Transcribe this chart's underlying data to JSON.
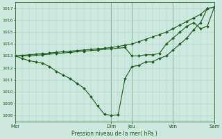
{
  "bg_color": "#cde8df",
  "grid_color": "#b0d4c8",
  "line_color": "#1a5e1a",
  "xlabel": "Pression niveau de la mer( hPa )",
  "ylim": [
    1007.5,
    1017.5
  ],
  "yticks": [
    1008,
    1009,
    1010,
    1011,
    1012,
    1013,
    1014,
    1015,
    1016,
    1017
  ],
  "day_labels": [
    "Mer",
    "Dim",
    "Jeu",
    "Ven",
    "Sam"
  ],
  "day_positions": [
    0,
    14,
    17,
    23,
    29
  ],
  "xlim": [
    0,
    29
  ],
  "series1_x": [
    0,
    1,
    2,
    3,
    4,
    5,
    6,
    7,
    8,
    9,
    10,
    11,
    12,
    13,
    14,
    15,
    16,
    17,
    18,
    19,
    20,
    21,
    22,
    23,
    24,
    25,
    26,
    27,
    28,
    29
  ],
  "series1_y": [
    1013.0,
    1013.05,
    1013.1,
    1013.15,
    1013.2,
    1013.25,
    1013.3,
    1013.35,
    1013.4,
    1013.45,
    1013.5,
    1013.55,
    1013.6,
    1013.65,
    1013.7,
    1013.8,
    1013.9,
    1014.0,
    1014.2,
    1014.4,
    1014.6,
    1014.8,
    1015.0,
    1015.3,
    1015.6,
    1015.9,
    1016.2,
    1016.5,
    1017.0,
    1017.1
  ],
  "series2_x": [
    0,
    1,
    2,
    3,
    4,
    5,
    6,
    7,
    8,
    9,
    10,
    11,
    12,
    13,
    14,
    15,
    16,
    17,
    18,
    19,
    20,
    21,
    22,
    23,
    24,
    25,
    26,
    27,
    28,
    29
  ],
  "series2_y": [
    1013.0,
    1012.8,
    1012.6,
    1012.5,
    1012.4,
    1012.1,
    1011.7,
    1011.4,
    1011.1,
    1010.7,
    1010.3,
    1009.6,
    1008.8,
    1008.1,
    1008.0,
    1008.05,
    1011.1,
    1012.1,
    1012.2,
    1012.5,
    1012.5,
    1012.8,
    1013.0,
    1013.5,
    1014.0,
    1014.5,
    1015.2,
    1015.8,
    1017.0,
    1017.1
  ],
  "series3_x": [
    0,
    2,
    4,
    6,
    8,
    10,
    12,
    14,
    16,
    17,
    18,
    19,
    20,
    21,
    22,
    23,
    24,
    25,
    26,
    27,
    28,
    29
  ],
  "series3_y": [
    1013.0,
    1013.0,
    1013.1,
    1013.2,
    1013.3,
    1013.4,
    1013.5,
    1013.6,
    1013.7,
    1013.0,
    1013.0,
    1013.1,
    1013.1,
    1013.2,
    1014.0,
    1014.5,
    1015.0,
    1015.5,
    1015.8,
    1015.3,
    1015.5,
    1017.1
  ]
}
